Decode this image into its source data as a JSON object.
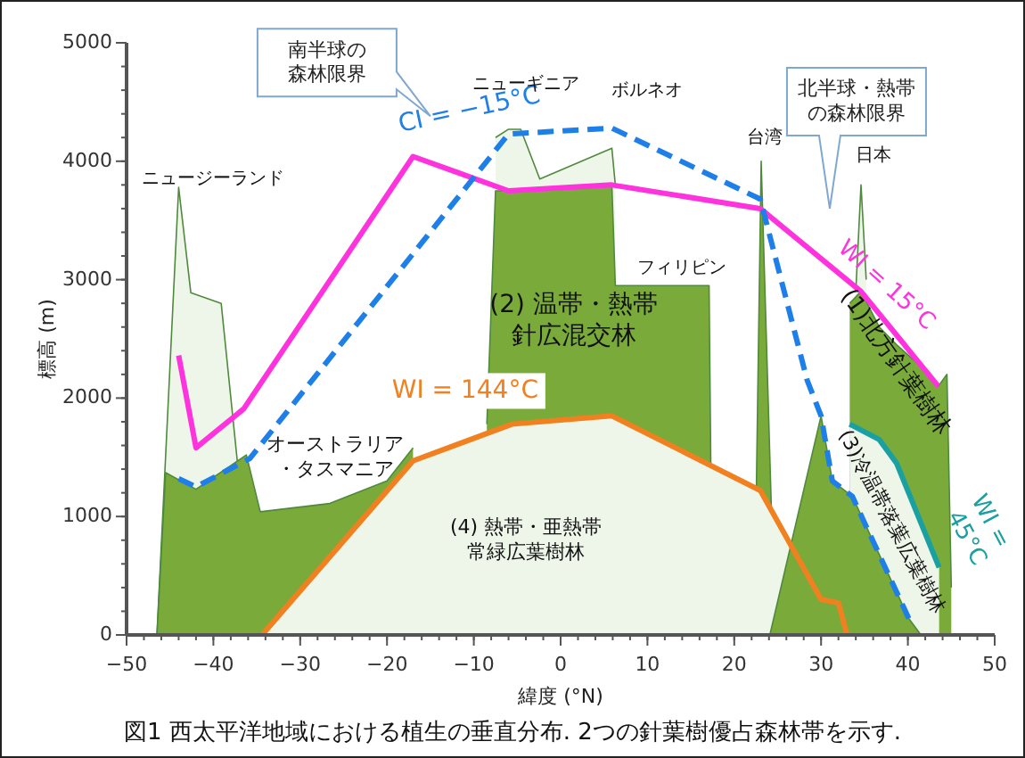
{
  "chart_data": {
    "type": "line",
    "xlabel": "緯度 (°N)",
    "ylabel": "標高 (m)",
    "xlim": [
      -50,
      50
    ],
    "xticks": [
      -50,
      -40,
      -30,
      -20,
      -10,
      0,
      10,
      20,
      30,
      40,
      50
    ],
    "ylim": [
      0,
      5000
    ],
    "yticks": [
      0,
      1000,
      2000,
      3000,
      4000,
      5000
    ],
    "series": [
      {
        "type": "area",
        "color": "#eef6ea",
        "x": [
          -46.5,
          -44,
          -42.6,
          -39.1,
          -35.2
        ],
        "values": [
          0,
          3780,
          2890,
          2800,
          0
        ]
      },
      {
        "type": "area",
        "color": "#eef6ea",
        "x": [
          -7.5,
          -6,
          -4.6,
          -2.4,
          5.9,
          6.3
        ],
        "values": [
          4200,
          4270,
          4270,
          3850,
          4110,
          3800
        ]
      },
      {
        "type": "area",
        "color": "#eef6ea",
        "x": [
          34,
          34.6,
          35.2
        ],
        "values": [
          2900,
          3800,
          3000
        ]
      },
      {
        "type": "area",
        "color": "#7aab3a",
        "x": [
          -46.5,
          -45.5,
          -42,
          -36.2,
          -34.6,
          -26.6,
          -20,
          -17
        ],
        "values": [
          0,
          1370,
          1230,
          1520,
          1040,
          1110,
          1300,
          1580
        ]
      },
      {
        "type": "area",
        "color": "#7aab3a",
        "x": [
          -8.5,
          -7.5,
          -6,
          -4.6,
          -2.4,
          5.9,
          6.3,
          10.8,
          17.1,
          17.3
        ],
        "values": [
          1780,
          3750,
          3750,
          3750,
          3780,
          3800,
          2950,
          2950,
          2950,
          1430
        ]
      },
      {
        "type": "area",
        "color": "#7aab3a",
        "x": [
          33.3,
          34.6,
          36.7,
          38.7,
          41,
          43.5,
          44.5,
          45
        ],
        "values": [
          2800,
          2900,
          2600,
          2450,
          2300,
          2100,
          2200,
          400
        ]
      },
      {
        "type": "area",
        "color": "#7aab3a",
        "x": [
          22.3,
          23.1,
          24.7
        ],
        "values": [
          0,
          4000,
          0
        ]
      },
      {
        "type": "area",
        "name": "WI = 144°C",
        "color": "#f08020",
        "line_style": "solid",
        "x": [
          -34.4,
          -17,
          -5.6,
          5.9,
          23,
          30,
          32,
          33
        ],
        "values": [
          0,
          1470,
          1780,
          1850,
          1220,
          300,
          270,
          0
        ]
      },
      {
        "type": "area",
        "name": "WI = 45°C",
        "color": "#1aa0a0",
        "line_style": "solid",
        "x": [
          33.3,
          36.7,
          38.7,
          43.6
        ],
        "values": [
          1780,
          1650,
          1450,
          570
        ]
      },
      {
        "type": "area",
        "color": "#7aab3a",
        "x": [
          24.1,
          30,
          31.3,
          33.6,
          40.1,
          41.5
        ],
        "values": [
          0,
          1850,
          1300,
          1170,
          140,
          0
        ]
      },
      {
        "name": "WI = 15°C",
        "color": "#ff33dd",
        "line_style": "solid",
        "x": [
          -44,
          -42,
          -36.5,
          -17,
          -6,
          5.9,
          23,
          34.6,
          43.5
        ],
        "values": [
          2360,
          1580,
          1910,
          4040,
          3750,
          3800,
          3600,
          2900,
          2100
        ]
      },
      {
        "name": "CI = −15°C",
        "color": "#1f7fe8",
        "line_style": "dashed",
        "x": [
          -44,
          -42,
          -35.8,
          -6,
          5.9,
          23,
          28.4,
          30,
          31.3,
          33.6,
          40.1
        ],
        "values": [
          1320,
          1250,
          1490,
          4230,
          4280,
          3680,
          2150,
          1850,
          1300,
          1170,
          140
        ]
      }
    ],
    "annotations": [
      "ニュージーランド",
      "ニューギニア",
      "ボルネオ",
      "台湾",
      "日本",
      "フィリピン",
      "オーストラリア・タスマニア",
      "(2) 温帯・熱帯針広混交林",
      "(4) 熱帯・亜熱帯常緑広葉樹林",
      {
        "text": "(1)北方針葉樹林",
        "x": 38.7,
        "y": 2450
      },
      {
        "text": "(3)冷温帯落葉広葉樹林",
        "x": 38.7,
        "y": 1450
      },
      "南半球の森林限界",
      "北半球・熱帯の森林限界",
      "図1  西太平洋地域における植生の垂直分布. 2つの針葉樹優占森林帯を示す."
    ]
  }
}
